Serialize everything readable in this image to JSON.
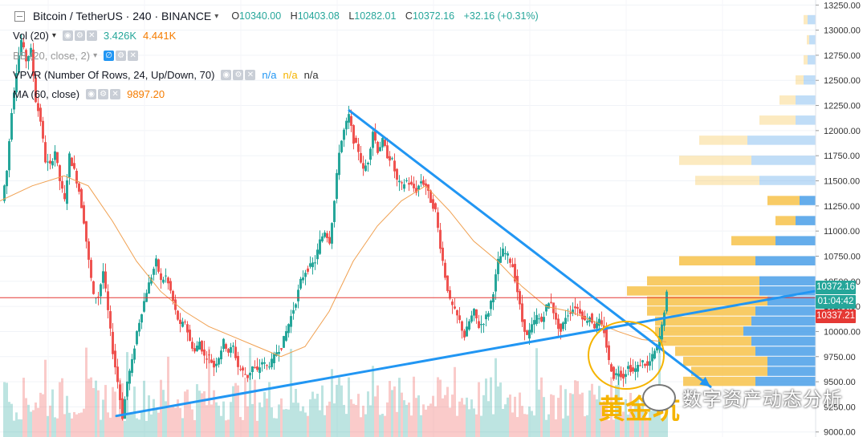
{
  "header": {
    "symbol_title": "Bitcoin / TetherUS · 240 · BINANCE",
    "ohlc": {
      "open_label": "O",
      "open": "10340.00",
      "high_label": "H",
      "high": "10403.08",
      "low_label": "L",
      "low": "10282.01",
      "close_label": "C",
      "close": "10372.16",
      "change": "+32.16 (+0.31%)"
    }
  },
  "indicators": [
    {
      "label": "Vol (20)",
      "values": [
        "3.426K",
        "4.441K"
      ]
    },
    {
      "label": "BB (20, close, 2)",
      "values": []
    },
    {
      "label": "VPVR (Number Of Rows, 24, Up/Down, 70)",
      "values": [
        "n/a",
        "n/a",
        "n/a"
      ]
    },
    {
      "label": "MA (60, close)",
      "values": [
        "9897.20"
      ]
    }
  ],
  "price_tags": {
    "last": "10372.16",
    "countdown": "01:04:42",
    "red_level": "10337.21"
  },
  "annotation": "黄金坑",
  "watermark": "数字资产动态分析",
  "colors": {
    "up": "#26a69a",
    "down": "#ef5350",
    "vp_up": "#f7c24a",
    "vp_down": "#4a9fe8",
    "trend": "#2196f3",
    "ma": "#f0a050",
    "price_line": "#e53935"
  },
  "chart_data": {
    "type": "candlestick",
    "title": "Bitcoin / TetherUS, 240, BINANCE",
    "ylim": [
      8950,
      13300
    ],
    "y_ticks": [
      9000,
      9250,
      9500,
      9750,
      10000,
      10250,
      10500,
      10750,
      11000,
      11250,
      11500,
      11750,
      12000,
      12250,
      12500,
      12750,
      13000,
      13250
    ],
    "close_path": [
      [
        0,
        11300
      ],
      [
        6,
        11600
      ],
      [
        12,
        12200
      ],
      [
        18,
        12600
      ],
      [
        24,
        12900
      ],
      [
        30,
        12700
      ],
      [
        36,
        12800
      ],
      [
        42,
        12300
      ],
      [
        48,
        12100
      ],
      [
        54,
        11700
      ],
      [
        60,
        11650
      ],
      [
        66,
        11800
      ],
      [
        72,
        11500
      ],
      [
        78,
        11300
      ],
      [
        84,
        11750
      ],
      [
        90,
        11600
      ],
      [
        96,
        11400
      ],
      [
        102,
        11100
      ],
      [
        108,
        10700
      ],
      [
        114,
        10350
      ],
      [
        120,
        10350
      ],
      [
        126,
        10600
      ],
      [
        132,
        10200
      ],
      [
        138,
        9800
      ],
      [
        144,
        9500
      ],
      [
        150,
        9150
      ],
      [
        156,
        9500
      ],
      [
        162,
        9700
      ],
      [
        168,
        10000
      ],
      [
        174,
        10200
      ],
      [
        180,
        10400
      ],
      [
        186,
        10550
      ],
      [
        192,
        10700
      ],
      [
        198,
        10500
      ],
      [
        204,
        10550
      ],
      [
        210,
        10400
      ],
      [
        216,
        10200
      ],
      [
        222,
        10050
      ],
      [
        228,
        10100
      ],
      [
        234,
        9900
      ],
      [
        240,
        9800
      ],
      [
        246,
        9900
      ],
      [
        252,
        9750
      ],
      [
        258,
        9750
      ],
      [
        264,
        9650
      ],
      [
        270,
        9750
      ],
      [
        276,
        9900
      ],
      [
        282,
        9800
      ],
      [
        288,
        9850
      ],
      [
        294,
        9650
      ],
      [
        300,
        9600
      ],
      [
        306,
        9550
      ],
      [
        312,
        9650
      ],
      [
        318,
        9600
      ],
      [
        324,
        9700
      ],
      [
        330,
        9650
      ],
      [
        336,
        9700
      ],
      [
        342,
        9800
      ],
      [
        348,
        9850
      ],
      [
        354,
        10000
      ],
      [
        360,
        10150
      ],
      [
        366,
        10300
      ],
      [
        372,
        10500
      ],
      [
        378,
        10600
      ],
      [
        384,
        10650
      ],
      [
        390,
        10700
      ],
      [
        396,
        10900
      ],
      [
        402,
        11000
      ],
      [
        408,
        10900
      ],
      [
        414,
        11300
      ],
      [
        420,
        11800
      ],
      [
        426,
        12000
      ],
      [
        432,
        12150
      ],
      [
        438,
        11900
      ],
      [
        444,
        11800
      ],
      [
        450,
        11600
      ],
      [
        456,
        11700
      ],
      [
        462,
        12000
      ],
      [
        468,
        11800
      ],
      [
        474,
        11900
      ],
      [
        480,
        11750
      ],
      [
        486,
        11700
      ],
      [
        492,
        11500
      ],
      [
        498,
        11450
      ],
      [
        504,
        11500
      ],
      [
        510,
        11450
      ],
      [
        516,
        11400
      ],
      [
        522,
        11500
      ],
      [
        528,
        11450
      ],
      [
        534,
        11300
      ],
      [
        540,
        11200
      ],
      [
        546,
        10850
      ],
      [
        552,
        10550
      ],
      [
        558,
        10300
      ],
      [
        564,
        10200
      ],
      [
        570,
        10100
      ],
      [
        576,
        9950
      ],
      [
        582,
        10100
      ],
      [
        588,
        10200
      ],
      [
        594,
        10050
      ],
      [
        600,
        10100
      ],
      [
        606,
        10200
      ],
      [
        612,
        10400
      ],
      [
        618,
        10700
      ],
      [
        624,
        10800
      ],
      [
        630,
        10750
      ],
      [
        636,
        10650
      ],
      [
        642,
        10400
      ],
      [
        648,
        10100
      ],
      [
        654,
        9950
      ],
      [
        660,
        10050
      ],
      [
        666,
        10150
      ],
      [
        672,
        10100
      ],
      [
        678,
        10250
      ],
      [
        684,
        10300
      ],
      [
        690,
        10100
      ],
      [
        696,
        10000
      ],
      [
        702,
        10150
      ],
      [
        708,
        10200
      ],
      [
        714,
        10250
      ],
      [
        720,
        10200
      ],
      [
        726,
        10100
      ],
      [
        732,
        10150
      ],
      [
        738,
        10050
      ],
      [
        744,
        10100
      ],
      [
        750,
        10000
      ],
      [
        756,
        9700
      ],
      [
        762,
        9550
      ],
      [
        768,
        9600
      ],
      [
        774,
        9550
      ],
      [
        780,
        9650
      ],
      [
        786,
        9600
      ],
      [
        792,
        9650
      ],
      [
        798,
        9700
      ],
      [
        804,
        9650
      ],
      [
        810,
        9750
      ],
      [
        816,
        9850
      ],
      [
        822,
        10050
      ],
      [
        828,
        10372
      ]
    ],
    "moving_average": {
      "name": "MA (60, close)",
      "points": [
        [
          0,
          11300
        ],
        [
          40,
          11450
        ],
        [
          80,
          11550
        ],
        [
          110,
          11450
        ],
        [
          140,
          11100
        ],
        [
          170,
          10700
        ],
        [
          200,
          10400
        ],
        [
          230,
          10200
        ],
        [
          260,
          10050
        ],
        [
          290,
          9950
        ],
        [
          320,
          9850
        ],
        [
          350,
          9750
        ],
        [
          380,
          9850
        ],
        [
          410,
          10200
        ],
        [
          440,
          10700
        ],
        [
          470,
          11050
        ],
        [
          500,
          11300
        ],
        [
          530,
          11450
        ],
        [
          560,
          11200
        ],
        [
          590,
          10900
        ],
        [
          620,
          10700
        ],
        [
          650,
          10450
        ],
        [
          680,
          10250
        ],
        [
          710,
          10200
        ],
        [
          740,
          10100
        ],
        [
          770,
          10000
        ],
        [
          800,
          9920
        ],
        [
          830,
          9897
        ]
      ]
    },
    "volume_profile": {
      "price_step": 100,
      "rows": [
        {
          "price": 9500,
          "up": 90,
          "down": 75
        },
        {
          "price": 9600,
          "up": 95,
          "down": 60
        },
        {
          "price": 9700,
          "up": 105,
          "down": 60
        },
        {
          "price": 9800,
          "up": 100,
          "down": 75
        },
        {
          "price": 9900,
          "up": 115,
          "down": 80
        },
        {
          "price": 10000,
          "up": 110,
          "down": 90
        },
        {
          "price": 10100,
          "up": 120,
          "down": 80
        },
        {
          "price": 10200,
          "up": 135,
          "down": 75
        },
        {
          "price": 10300,
          "up": 150,
          "down": 60
        },
        {
          "price": 10400,
          "up": 165,
          "down": 70
        },
        {
          "price": 10500,
          "up": 140,
          "down": 70
        },
        {
          "price": 10700,
          "up": 95,
          "down": 75
        },
        {
          "price": 10900,
          "up": 55,
          "down": 50
        },
        {
          "price": 11100,
          "up": 25,
          "down": 25
        },
        {
          "price": 11300,
          "up": 40,
          "down": 20
        },
        {
          "price": 11500,
          "up": 80,
          "down": 70
        },
        {
          "price": 11700,
          "up": 90,
          "down": 80
        },
        {
          "price": 11900,
          "up": 60,
          "down": 85
        },
        {
          "price": 12100,
          "up": 45,
          "down": 25
        },
        {
          "price": 12300,
          "up": 20,
          "down": 25
        },
        {
          "price": 12500,
          "up": 10,
          "down": 15
        },
        {
          "price": 12700,
          "up": 5,
          "down": 10
        },
        {
          "price": 12900,
          "up": 3,
          "down": 8
        },
        {
          "price": 13100,
          "up": 5,
          "down": 10
        }
      ]
    },
    "trendlines": [
      {
        "name": "descending",
        "from": [
          435,
          12200
        ],
        "to": [
          885,
          9450
        ],
        "arrow": true
      },
      {
        "name": "ascending",
        "from": [
          145,
          9160
        ],
        "to": [
          1070,
          10480
        ],
        "arrow": true
      }
    ],
    "horizontal_line": {
      "price": 10337
    }
  }
}
